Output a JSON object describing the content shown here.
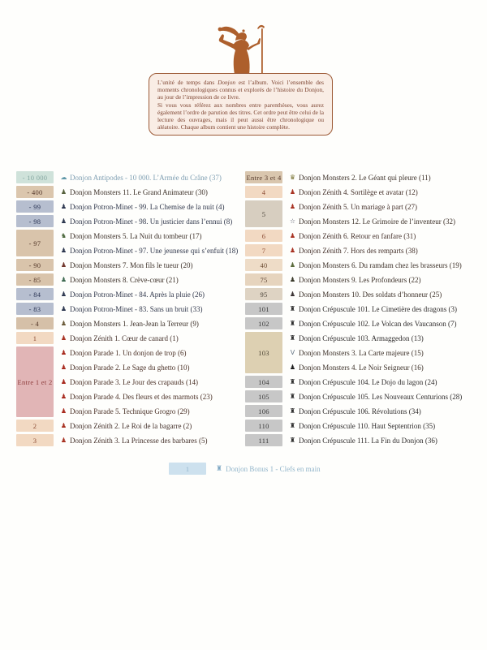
{
  "info_box": {
    "p1_before": "L’unité de temps dans ",
    "p1_italic": "Donjon",
    "p1_after": " est l’album. Voici l’ensemble des moments chronologiques connus et explorés de l’histoire du Donjon, au jour de l’impression de ce livre.",
    "p2": "Si vous vous référez aux nombres entre parenthèses, vous aurez également l’ordre de parution des titres. Cet ordre peut être celui de la lecture des ouvrages, mais il peut aussi être chronologique ou aléatoire. Chaque album contient une histoire complète."
  },
  "colors": {
    "wizard": "#ad5f2c",
    "box_border": "#9c5a36",
    "box_bg": "#f9ede5"
  },
  "columns": {
    "left": [
      {
        "label": "- 10 000",
        "bg": "#cfe2da",
        "fg": "#85a8a1",
        "entries": [
          {
            "icon": "☁",
            "icon_name": "whale-icon",
            "ic": "#5f97a8",
            "color": "#7f9fb2",
            "text": "Donjon Antipodes - 10 000. L’Armée du Crâne (37)"
          }
        ]
      },
      {
        "label": "- 400",
        "bg": "#dbc6ad",
        "fg": "#54382a",
        "entries": [
          {
            "icon": "♟",
            "icon_name": "figure-icon",
            "ic": "#55603c",
            "color": "#3c3028",
            "text": "Donjon Monsters 11. Le Grand Animateur (30)"
          }
        ]
      },
      {
        "label": "- 99",
        "bg": "#b6becf",
        "fg": "#2a3454",
        "entries": [
          {
            "icon": "♟",
            "icon_name": "figure-icon",
            "ic": "#2e3850",
            "color": "#30374b",
            "text": "Donjon Potron-Minet - 99. La Chemise de la nuit (4)"
          }
        ]
      },
      {
        "label": "- 98",
        "bg": "#b6becf",
        "fg": "#2a3454",
        "entries": [
          {
            "icon": "♟",
            "icon_name": "figure-icon",
            "ic": "#2e3850",
            "color": "#30374b",
            "text": "Donjon Potron-Minet - 98. Un justicier dans l’ennui (8)"
          }
        ]
      },
      {
        "label": "- 97",
        "bg": "#d9c4ab",
        "fg": "#54382a",
        "entries": [
          {
            "icon": "♞",
            "icon_name": "creature-icon",
            "ic": "#4e6a3f",
            "color": "#3c3028",
            "text": "Donjon Monsters 5. La Nuit du tombeur (17)"
          },
          {
            "icon": "♟",
            "icon_name": "figure-icon",
            "ic": "#2e3850",
            "color": "#30374b",
            "text": "Donjon Potron-Minet - 97. Une jeunesse qui s’enfuit (18)"
          }
        ]
      },
      {
        "label": "- 90",
        "bg": "#d9c4ab",
        "fg": "#54382a",
        "entries": [
          {
            "icon": "♟",
            "icon_name": "figure-icon",
            "ic": "#70352a",
            "color": "#3c3028",
            "text": "Donjon Monsters 7. Mon fils le tueur (20)"
          }
        ]
      },
      {
        "label": "- 85",
        "bg": "#d9c4ab",
        "fg": "#54382a",
        "entries": [
          {
            "icon": "♟",
            "icon_name": "figure-icon",
            "ic": "#3f6a52",
            "color": "#3c3028",
            "text": "Donjon Monsters 8. Crève-cœur (21)"
          }
        ]
      },
      {
        "label": "- 84",
        "bg": "#b6becf",
        "fg": "#2a3454",
        "entries": [
          {
            "icon": "♟",
            "icon_name": "figure-icon",
            "ic": "#2e3850",
            "color": "#30374b",
            "text": "Donjon Potron-Minet - 84. Après la pluie (26)"
          }
        ]
      },
      {
        "label": "- 83",
        "bg": "#b6becf",
        "fg": "#2a3454",
        "entries": [
          {
            "icon": "♟",
            "icon_name": "figure-icon",
            "ic": "#2e3850",
            "color": "#30374b",
            "text": "Donjon Potron-Minet - 83. Sans un bruit (33)"
          }
        ]
      },
      {
        "label": "- 4",
        "bg": "#d5c0a8",
        "fg": "#54382a",
        "entries": [
          {
            "icon": "♟",
            "icon_name": "figure-icon",
            "ic": "#6a5a38",
            "color": "#3c3028",
            "text": "Donjon Monsters 1. Jean-Jean la Terreur (9)"
          }
        ]
      },
      {
        "label": "1",
        "bg": "#f2d9c2",
        "fg": "#8a4a32",
        "entries": [
          {
            "icon": "♟",
            "icon_name": "duck-hero-icon",
            "ic": "#a83222",
            "color": "#44302a",
            "text": "Donjon Zénith 1. Cœur de canard (1)"
          }
        ]
      },
      {
        "label": "Entre 1 et 2",
        "bg": "#e1b5b6",
        "fg": "#8c3a3a",
        "entries": [
          {
            "icon": "♟",
            "icon_name": "parade-figure-icon",
            "ic": "#a82a1e",
            "color": "#4a3026",
            "text": "Donjon Parade 1. Un donjon de trop (6)"
          },
          {
            "icon": "♟",
            "icon_name": "parade-figure-icon",
            "ic": "#a82a1e",
            "color": "#4a3026",
            "text": "Donjon Parade 2. Le Sage du ghetto (10)"
          },
          {
            "icon": "♟",
            "icon_name": "parade-figure-icon",
            "ic": "#a82a1e",
            "color": "#4a3026",
            "text": "Donjon Parade 3. Le Jour des crapauds (14)"
          },
          {
            "icon": "♟",
            "icon_name": "parade-figure-icon",
            "ic": "#a82a1e",
            "color": "#4a3026",
            "text": "Donjon Parade 4. Des fleurs et des marmots (23)"
          },
          {
            "icon": "♟",
            "icon_name": "parade-figure-icon",
            "ic": "#a82a1e",
            "color": "#4a3026",
            "text": "Donjon Parade 5. Technique Grogro (29)"
          }
        ]
      },
      {
        "label": "2",
        "bg": "#f2d9c2",
        "fg": "#8a4a32",
        "entries": [
          {
            "icon": "♟",
            "icon_name": "duck-hero-icon",
            "ic": "#a83222",
            "color": "#44302a",
            "text": "Donjon Zénith 2. Le Roi de la bagarre (2)"
          }
        ]
      },
      {
        "label": "3",
        "bg": "#f2d9c2",
        "fg": "#8a4a32",
        "entries": [
          {
            "icon": "♟",
            "icon_name": "duck-hero-icon",
            "ic": "#a83222",
            "color": "#44302a",
            "text": "Donjon Zénith 3. La Princesse des barbares (5)"
          }
        ]
      }
    ],
    "right": [
      {
        "label": "Entre 3 et 4",
        "bg": "#d9c6ae",
        "fg": "#54382a",
        "entries": [
          {
            "icon": "♛",
            "icon_name": "giant-icon",
            "ic": "#76702f",
            "color": "#3c3028",
            "text": "Donjon Monsters 2. Le Géant qui pleure (11)"
          }
        ]
      },
      {
        "label": "4",
        "bg": "#f2d9c2",
        "fg": "#8a4a32",
        "entries": [
          {
            "icon": "♟",
            "icon_name": "duck-hero-icon",
            "ic": "#a83222",
            "color": "#44302a",
            "text": "Donjon Zénith 4. Sortilège et avatar (12)"
          }
        ]
      },
      {
        "label": "5",
        "bg": "#d7cec0",
        "fg": "#4a4238",
        "entries": [
          {
            "icon": "♟",
            "icon_name": "duck-hero-icon",
            "ic": "#a83222",
            "color": "#44302a",
            "text": "Donjon Zénith 5. Un mariage à part (27)"
          },
          {
            "icon": "☆",
            "icon_name": "star-icon",
            "ic": "#565a68",
            "color": "#3c3028",
            "text": "Donjon Monsters 12. Le Grimoire de l’inventeur (32)"
          }
        ]
      },
      {
        "label": "6",
        "bg": "#f2d9c2",
        "fg": "#8a4a32",
        "entries": [
          {
            "icon": "♟",
            "icon_name": "duck-hero-icon",
            "ic": "#a83222",
            "color": "#44302a",
            "text": "Donjon Zénith 6. Retour en fanfare (31)"
          }
        ]
      },
      {
        "label": "7",
        "bg": "#f2d9c2",
        "fg": "#8a4a32",
        "entries": [
          {
            "icon": "♟",
            "icon_name": "duck-hero-icon",
            "ic": "#a83222",
            "color": "#44302a",
            "text": "Donjon Zénith 7. Hors des remparts (38)"
          }
        ]
      },
      {
        "label": "40",
        "bg": "#eedcc7",
        "fg": "#6a4a32",
        "entries": [
          {
            "icon": "♟",
            "icon_name": "figure-icon",
            "ic": "#5a6a3a",
            "color": "#3c3028",
            "text": "Donjon Monsters 6. Du ramdam chez les brasseurs (19)"
          }
        ]
      },
      {
        "label": "75",
        "bg": "#e6d4be",
        "fg": "#5a4232",
        "entries": [
          {
            "icon": "♟",
            "icon_name": "figure-icon",
            "ic": "#3a3a2a",
            "color": "#3c3028",
            "text": "Donjon Monsters 9. Les Profondeurs (22)"
          }
        ]
      },
      {
        "label": "95",
        "bg": "#ded3c3",
        "fg": "#4a4238",
        "entries": [
          {
            "icon": "♟",
            "icon_name": "figure-icon",
            "ic": "#3a3232",
            "color": "#3c3028",
            "text": "Donjon Monsters 10. Des soldats d’honneur (25)"
          }
        ]
      },
      {
        "label": "101",
        "bg": "#c7c7c7",
        "fg": "#3a3a3a",
        "entries": [
          {
            "icon": "♜",
            "icon_name": "tower-icon",
            "ic": "#2a2a2a",
            "color": "#2e2b2b",
            "text": "Donjon Crépuscule 101. Le Cimetière des dragons (3)"
          }
        ]
      },
      {
        "label": "102",
        "bg": "#c7c7c7",
        "fg": "#3a3a3a",
        "entries": [
          {
            "icon": "♜",
            "icon_name": "tower-icon",
            "ic": "#2a2a2a",
            "color": "#2e2b2b",
            "text": "Donjon Crépuscule 102. Le Volcan des Vaucanson (7)"
          }
        ]
      },
      {
        "label": "103",
        "bg": "#ddd0b2",
        "fg": "#4a4232",
        "entries": [
          {
            "icon": "♜",
            "icon_name": "tower-icon",
            "ic": "#2a2a2a",
            "color": "#2e2b2b",
            "text": "Donjon Crépuscule 103. Armaggedon (13)"
          },
          {
            "icon": "V",
            "icon_name": "bird-icon",
            "ic": "#6a7a88",
            "color": "#3c3028",
            "text": "Donjon Monsters 3. La Carte majeure (15)"
          },
          {
            "icon": "♟",
            "icon_name": "dark-figure-icon",
            "ic": "#1c1c1c",
            "color": "#3c3028",
            "text": "Donjon Monsters 4. Le Noir Seigneur (16)"
          }
        ]
      },
      {
        "label": "104",
        "bg": "#c7c7c7",
        "fg": "#3a3a3a",
        "entries": [
          {
            "icon": "♜",
            "icon_name": "tower-icon",
            "ic": "#2a2a2a",
            "color": "#2e2b2b",
            "text": "Donjon Crépuscule 104. Le Dojo du lagon (24)"
          }
        ]
      },
      {
        "label": "105",
        "bg": "#c7c7c7",
        "fg": "#3a3a3a",
        "entries": [
          {
            "icon": "♜",
            "icon_name": "tower-icon",
            "ic": "#2a2a2a",
            "color": "#2e2b2b",
            "text": "Donjon Crépuscule 105. Les Nouveaux Centurions (28)"
          }
        ]
      },
      {
        "label": "106",
        "bg": "#c7c7c7",
        "fg": "#3a3a3a",
        "entries": [
          {
            "icon": "♜",
            "icon_name": "tower-icon",
            "ic": "#2a2a2a",
            "color": "#2e2b2b",
            "text": "Donjon Crépuscule 106. Révolutions (34)"
          }
        ]
      },
      {
        "label": "110",
        "bg": "#c7c7c7",
        "fg": "#3a3a3a",
        "entries": [
          {
            "icon": "♜",
            "icon_name": "tower-icon",
            "ic": "#2a2a2a",
            "color": "#2e2b2b",
            "text": "Donjon Crépuscule 110. Haut Septentrion (35)"
          }
        ]
      },
      {
        "label": "111",
        "bg": "#c7c7c7",
        "fg": "#3a3a3a",
        "entries": [
          {
            "icon": "♜",
            "icon_name": "tower-icon",
            "ic": "#2a2a2a",
            "color": "#2e2b2b",
            "text": "Donjon Crépuscule 111. La Fin du Donjon (36)"
          }
        ]
      }
    ]
  },
  "bonus": {
    "label": "1",
    "bg": "#cde1ee",
    "fg": "#93b6cb",
    "icon": "♜",
    "icon_color": "#7fa8c4",
    "text": "Donjon Bonus 1 - Clefs en main",
    "color": "#93b6cb"
  }
}
